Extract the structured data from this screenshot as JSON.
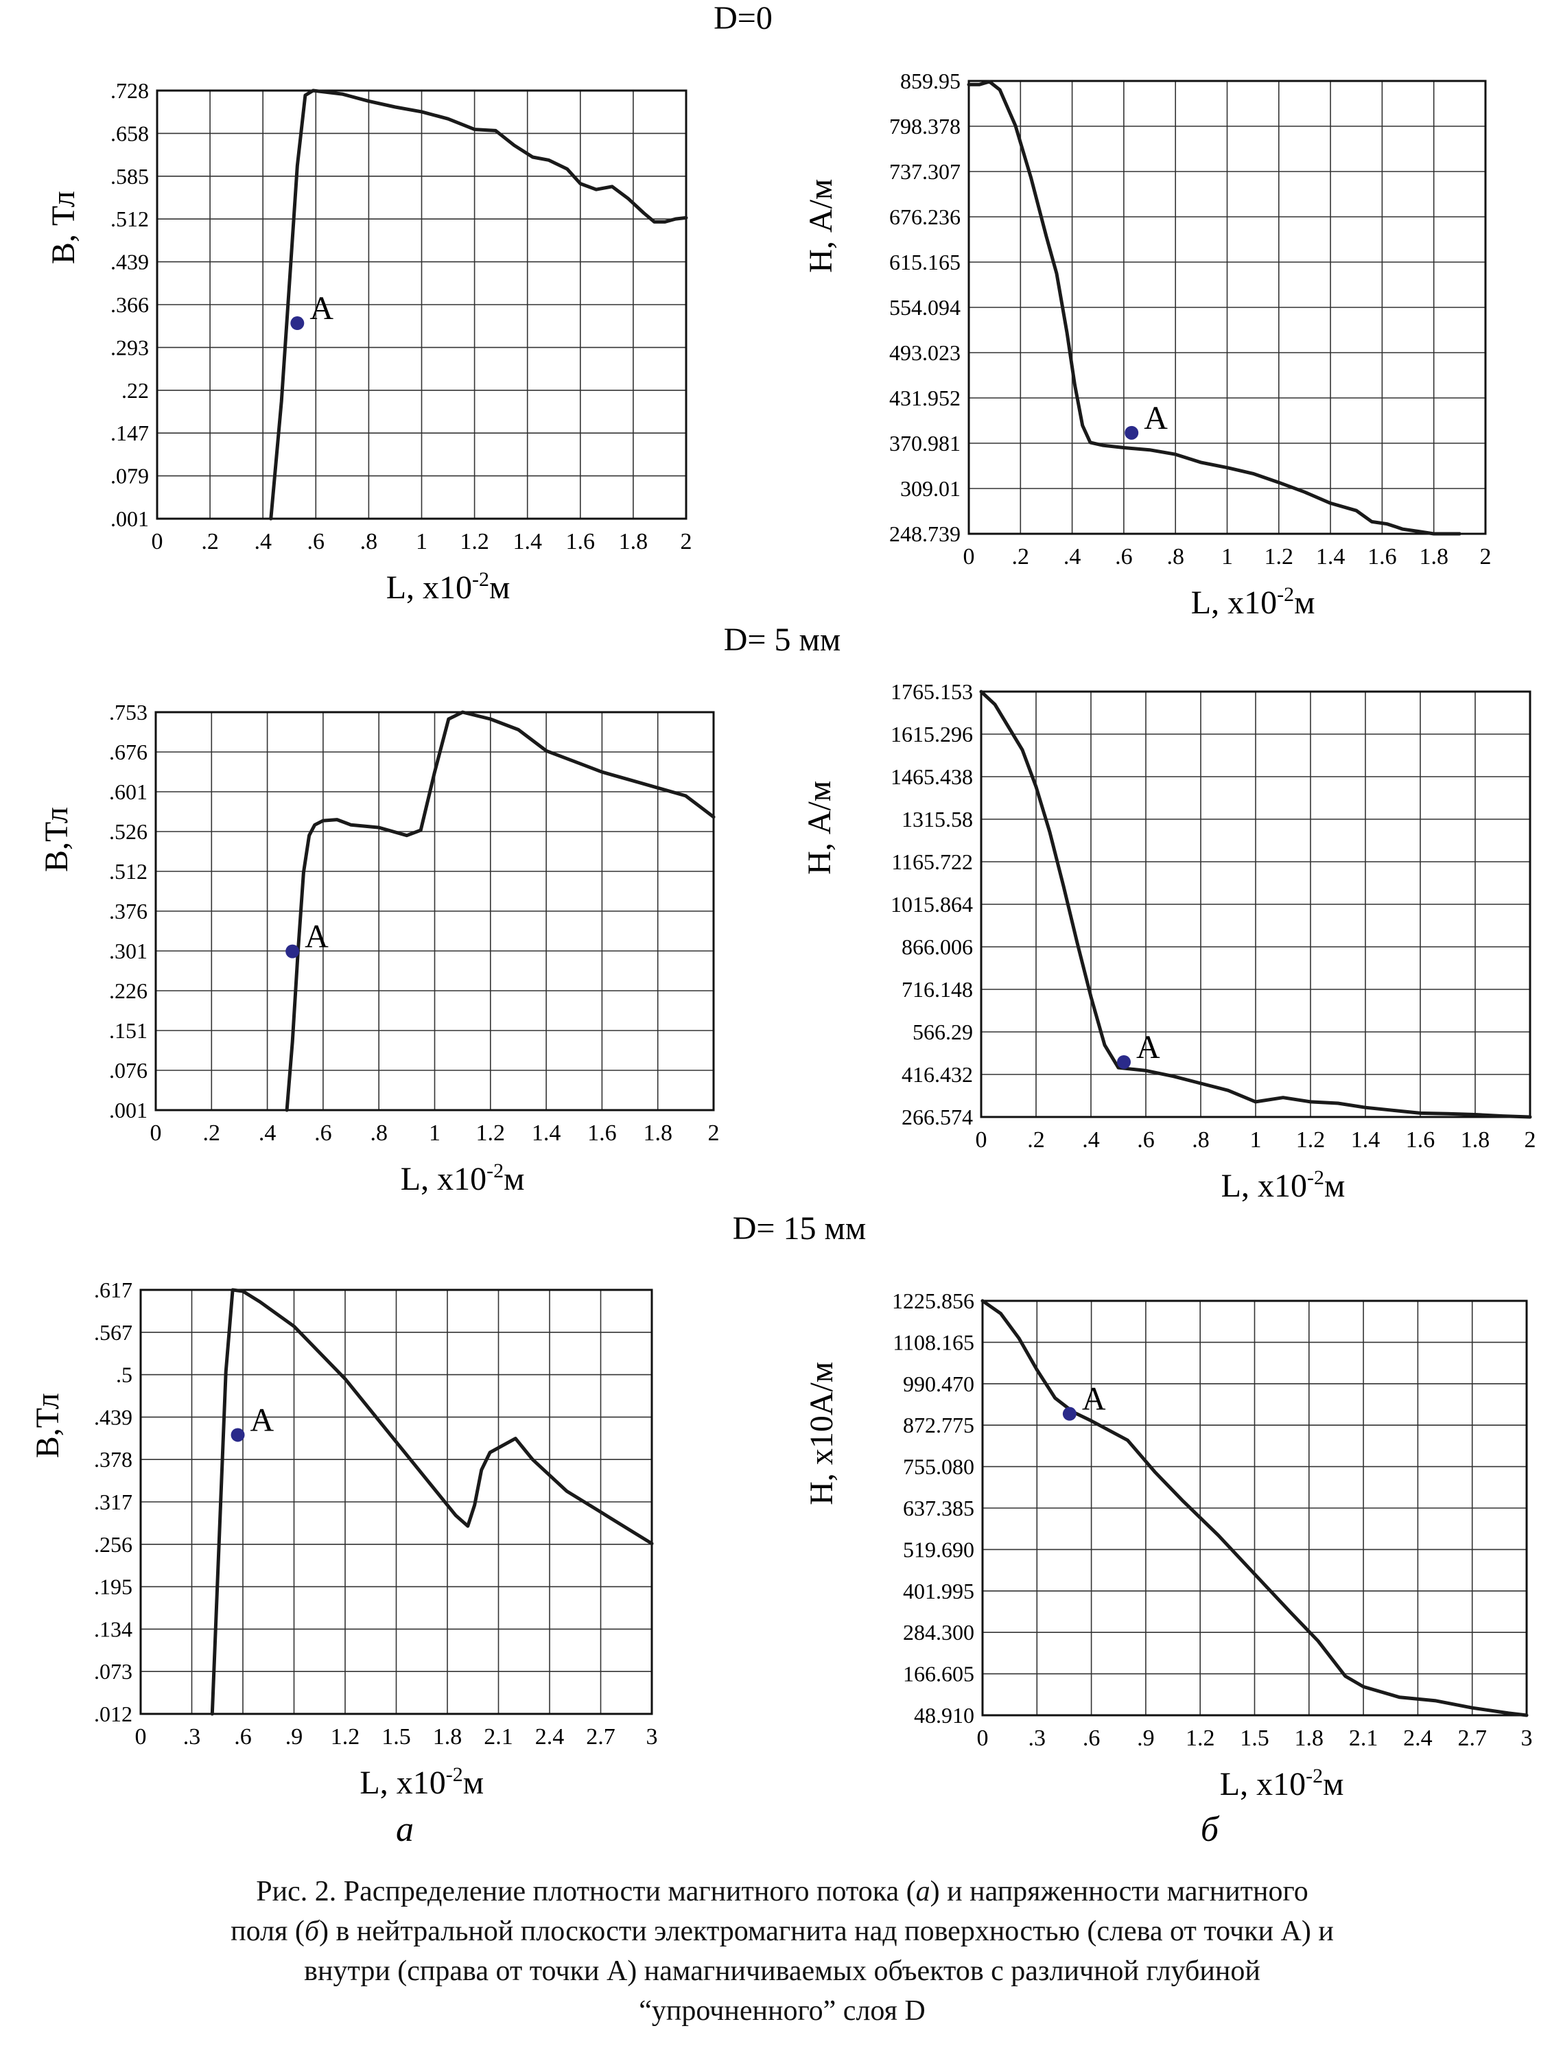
{
  "sections": [
    "D=0",
    "D= 5 мм",
    "D= 15 мм"
  ],
  "column_labels": [
    "а",
    "б"
  ],
  "caption": {
    "lines": [
      [
        "Рис. 2. Распределение плотности магнитного потока (",
        "а",
        ") и напряженности магнитного"
      ],
      [
        "поля (",
        "б",
        ") в нейтральной плоскости электромагнита над поверхностью (слева от точки А) и"
      ],
      [
        "внутри (справа от точки А) намагничиваемых объектов с различной глубиной",
        "",
        ""
      ],
      [
        "“упрочненного” слоя D",
        "",
        ""
      ]
    ]
  },
  "colors": {
    "curve": "#1a1a1a",
    "grid": "#333333",
    "point": "#2a2a8a"
  },
  "chart_data": [
    {
      "type": "line",
      "section": "D=0",
      "column": "а",
      "ylabel": "B, Тл",
      "xlabel": "L, x10^-2м",
      "x_ticks": [
        "0",
        ".2",
        ".4",
        ".6",
        ".8",
        "1",
        "1.2",
        "1.4",
        "1.6",
        "1.8",
        "2"
      ],
      "y_ticks": [
        ".001",
        ".079",
        ".147",
        ".22",
        ".293",
        ".366",
        ".439",
        ".512",
        ".585",
        ".658",
        ".728"
      ],
      "xlim": [
        0,
        2
      ],
      "grid": true,
      "series": [
        {
          "x": [
            0.43,
            0.47,
            0.5,
            0.53,
            0.56,
            0.59,
            0.7,
            0.8,
            0.9,
            1.0,
            1.1,
            1.2,
            1.28,
            1.35,
            1.42,
            1.48,
            1.55,
            1.6,
            1.66,
            1.72,
            1.78,
            1.84,
            1.88,
            1.92,
            1.96,
            2.0
          ],
          "y": [
            0.001,
            0.2,
            0.4,
            0.6,
            0.72,
            0.728,
            0.722,
            0.71,
            0.7,
            0.692,
            0.68,
            0.662,
            0.66,
            0.635,
            0.615,
            0.61,
            0.595,
            0.57,
            0.56,
            0.565,
            0.545,
            0.52,
            0.505,
            0.505,
            0.51,
            0.512
          ]
        }
      ],
      "points": [
        {
          "x": 0.53,
          "y": 0.333,
          "label": "A"
        }
      ]
    },
    {
      "type": "line",
      "section": "D=0",
      "column": "б",
      "ylabel": "H, А/м",
      "xlabel": "L, x10^-2м",
      "x_ticks": [
        "0",
        ".2",
        ".4",
        ".6",
        ".8",
        "1",
        "1.2",
        "1.4",
        "1.6",
        "1.8",
        "2"
      ],
      "y_ticks": [
        "248.739",
        "309.01",
        "370.981",
        "431.952",
        "493.023",
        "554.094",
        "615.165",
        "676.236",
        "737.307",
        "798.378",
        "859.95"
      ],
      "xlim": [
        0,
        2
      ],
      "grid": true,
      "series": [
        {
          "x": [
            0.0,
            0.04,
            0.08,
            0.12,
            0.18,
            0.24,
            0.3,
            0.34,
            0.38,
            0.41,
            0.44,
            0.47,
            0.52,
            0.6,
            0.7,
            0.8,
            0.9,
            1.0,
            1.1,
            1.2,
            1.3,
            1.4,
            1.5,
            1.56,
            1.62,
            1.68,
            1.74,
            1.8,
            1.9
          ],
          "y": [
            855,
            855,
            859,
            848,
            800,
            730,
            650,
            600,
            520,
            450,
            395,
            372,
            368,
            365,
            362,
            356,
            345,
            338,
            330,
            318,
            305,
            290,
            280,
            265,
            262,
            255,
            252,
            248.739,
            248.739
          ]
        }
      ],
      "points": [
        {
          "x": 0.63,
          "y": 385,
          "label": "A"
        }
      ]
    },
    {
      "type": "line",
      "section": "D= 5 мм",
      "column": "а",
      "ylabel": "B,Тл",
      "xlabel": "L, x10^-2м",
      "x_ticks": [
        "0",
        ".2",
        ".4",
        ".6",
        ".8",
        "1",
        "1.2",
        "1.4",
        "1.6",
        "1.8",
        "2"
      ],
      "y_ticks": [
        ".001",
        ".076",
        ".151",
        ".226",
        ".301",
        ".376",
        ".512",
        ".526",
        ".601",
        ".676",
        ".753"
      ],
      "xlim": [
        0,
        2
      ],
      "grid": true,
      "series": [
        {
          "x": [
            0.47,
            0.49,
            0.51,
            0.53,
            0.55,
            0.57,
            0.6,
            0.65,
            0.7,
            0.8,
            0.9,
            0.95,
            1.0,
            1.05,
            1.1,
            1.2,
            1.3,
            1.4,
            1.5,
            1.6,
            1.7,
            1.8,
            1.9,
            2.0
          ],
          "y": [
            0.001,
            0.13,
            0.3,
            0.45,
            0.52,
            0.54,
            0.548,
            0.55,
            0.54,
            0.535,
            0.52,
            0.53,
            0.64,
            0.74,
            0.753,
            0.74,
            0.72,
            0.68,
            0.66,
            0.64,
            0.625,
            0.61,
            0.595,
            0.555
          ]
        }
      ],
      "points": [
        {
          "x": 0.49,
          "y": 0.301,
          "label": "A"
        }
      ]
    },
    {
      "type": "line",
      "section": "D= 5 мм",
      "column": "б",
      "ylabel": "H, А/м",
      "xlabel": "L, x10^-2м",
      "x_ticks": [
        "0",
        ".2",
        ".4",
        ".6",
        ".8",
        "1",
        "1.2",
        "1.4",
        "1.6",
        "1.8",
        "2"
      ],
      "y_ticks": [
        "266.574",
        "416.432",
        "566.29",
        "716.148",
        "866.006",
        "1015.864",
        "1165.722",
        "1315.58",
        "1465.438",
        "1615.296",
        "1765.153"
      ],
      "xlim": [
        0,
        2
      ],
      "grid": true,
      "series": [
        {
          "x": [
            0.0,
            0.05,
            0.1,
            0.15,
            0.2,
            0.25,
            0.3,
            0.35,
            0.4,
            0.45,
            0.5,
            0.55,
            0.6,
            0.7,
            0.8,
            0.9,
            1.0,
            1.1,
            1.2,
            1.3,
            1.4,
            1.5,
            1.6,
            1.7,
            1.8,
            1.9,
            2.0
          ],
          "y": [
            1765,
            1720,
            1640,
            1560,
            1430,
            1270,
            1080,
            880,
            690,
            520,
            440,
            435,
            430,
            410,
            385,
            360,
            320,
            335,
            320,
            315,
            300,
            290,
            280,
            278,
            275,
            270,
            266.574
          ]
        }
      ],
      "points": [
        {
          "x": 0.52,
          "y": 460,
          "label": "A"
        }
      ]
    },
    {
      "type": "line",
      "section": "D= 15 мм",
      "column": "а",
      "ylabel": "B,Тл",
      "xlabel": "L, x10^-2м",
      "x_ticks": [
        "0",
        ".3",
        ".6",
        ".9",
        "1.2",
        "1.5",
        "1.8",
        "2.1",
        "2.4",
        "2.7",
        "3"
      ],
      "y_ticks": [
        ".012",
        ".073",
        ".134",
        ".195",
        ".256",
        ".317",
        ".378",
        ".439",
        ".5",
        ".567",
        ".617"
      ],
      "xlim": [
        0,
        3
      ],
      "grid": true,
      "series": [
        {
          "x": [
            0.42,
            0.5,
            0.54,
            0.6,
            0.7,
            0.9,
            1.2,
            1.5,
            1.7,
            1.85,
            1.92,
            1.96,
            2.0,
            2.05,
            2.2,
            2.3,
            2.5,
            2.7,
            2.9,
            3.0
          ],
          "y": [
            0.012,
            0.5,
            0.617,
            0.615,
            0.6,
            0.565,
            0.49,
            0.4,
            0.34,
            0.295,
            0.28,
            0.31,
            0.36,
            0.385,
            0.405,
            0.375,
            0.33,
            0.3,
            0.27,
            0.255
          ]
        }
      ],
      "points": [
        {
          "x": 0.57,
          "y": 0.41,
          "label": "A"
        }
      ]
    },
    {
      "type": "line",
      "section": "D= 15 мм",
      "column": "б",
      "ylabel": "H, x10А/м",
      "xlabel": "L, x10^-2м",
      "x_ticks": [
        "0",
        ".3",
        ".6",
        ".9",
        "1.2",
        "1.5",
        "1.8",
        "2.1",
        "2.4",
        "2.7",
        "3"
      ],
      "y_ticks": [
        "48.910",
        "166.605",
        "284.300",
        "401.995",
        "519.690",
        "637.385",
        "755.080",
        "872.775",
        "990.470",
        "1108.165",
        "1225.856"
      ],
      "xlim": [
        0,
        3
      ],
      "grid": true,
      "series": [
        {
          "x": [
            0.0,
            0.1,
            0.2,
            0.3,
            0.4,
            0.5,
            0.6,
            0.8,
            0.95,
            1.1,
            1.3,
            1.5,
            1.7,
            1.85,
            2.0,
            2.1,
            2.3,
            2.5,
            2.7,
            2.9,
            3.0
          ],
          "y": [
            1225.856,
            1190,
            1120,
            1030,
            950,
            910,
            885,
            830,
            740,
            660,
            560,
            450,
            340,
            260,
            160,
            130,
            100,
            90,
            70,
            55,
            48.91
          ]
        }
      ],
      "points": [
        {
          "x": 0.48,
          "y": 905,
          "label": "A"
        }
      ]
    }
  ]
}
